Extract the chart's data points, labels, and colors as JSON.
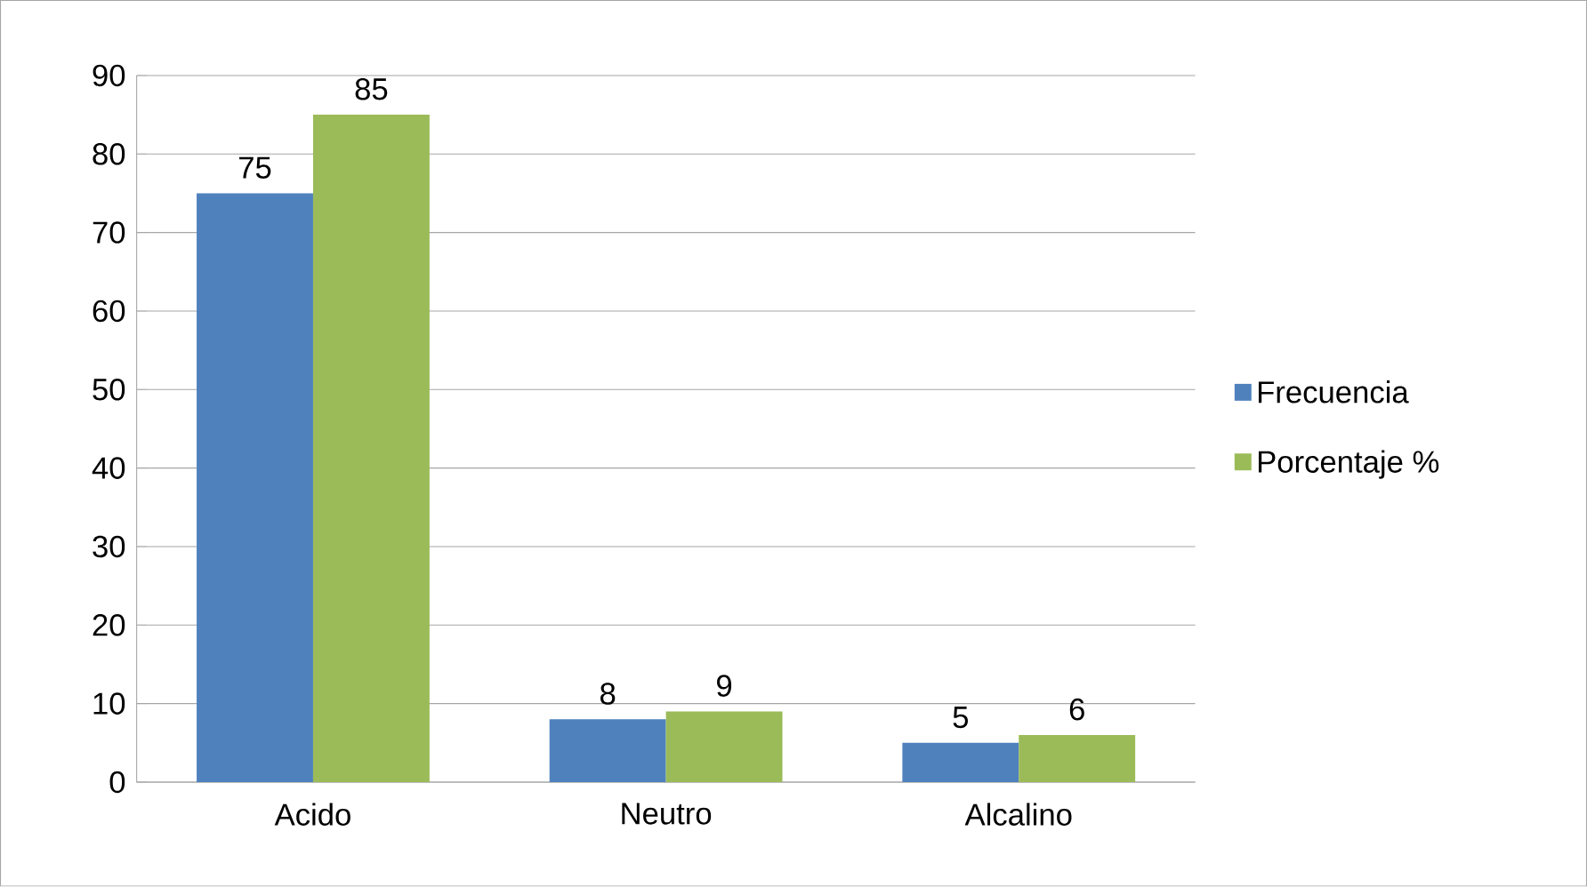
{
  "chart_data": {
    "type": "bar",
    "categories": [
      "Acido",
      "Neutro",
      "Alcalino"
    ],
    "series": [
      {
        "name": "Frecuencia",
        "color": "#4f81bd",
        "values": [
          75,
          8,
          5
        ]
      },
      {
        "name": "Porcentaje %",
        "color": "#9bbb59",
        "values": [
          85,
          9,
          6
        ]
      }
    ],
    "ylim": [
      0,
      90
    ],
    "yticks": [
      0,
      10,
      20,
      30,
      40,
      50,
      60,
      70,
      80,
      90
    ],
    "grid": "y",
    "legend": "right",
    "data_labels": true
  }
}
